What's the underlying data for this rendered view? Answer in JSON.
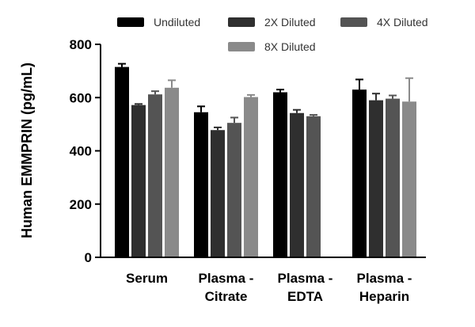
{
  "chart_data": {
    "type": "bar",
    "ylabel": "Human EMMPRIN (pg/mL)",
    "ylim": [
      0,
      800
    ],
    "yticks": [
      "0",
      "200",
      "400",
      "600",
      "800"
    ],
    "legend_position": "top",
    "categories": [
      {
        "line1": "Serum",
        "line2": ""
      },
      {
        "line1": "Plasma -",
        "line2": "Citrate"
      },
      {
        "line1": "Plasma -",
        "line2": "EDTA"
      },
      {
        "line1": "Plasma -",
        "line2": "Heparin"
      }
    ],
    "series": [
      {
        "name": "Undiluted",
        "color": "#000000",
        "values": [
          715,
          545,
          620,
          630
        ],
        "errors": [
          12,
          22,
          10,
          38
        ]
      },
      {
        "name": "2X Diluted",
        "color": "#2f2f2f",
        "values": [
          572,
          478,
          542,
          590
        ],
        "errors": [
          4,
          10,
          12,
          25
        ]
      },
      {
        "name": "4X Diluted",
        "color": "#545454",
        "values": [
          612,
          505,
          530,
          596
        ],
        "errors": [
          12,
          20,
          5,
          12
        ]
      },
      {
        "name": "8X Diluted",
        "color": "#8a8a8a",
        "values": [
          637,
          602,
          null,
          585
        ],
        "errors": [
          28,
          8,
          null,
          88
        ]
      }
    ]
  }
}
